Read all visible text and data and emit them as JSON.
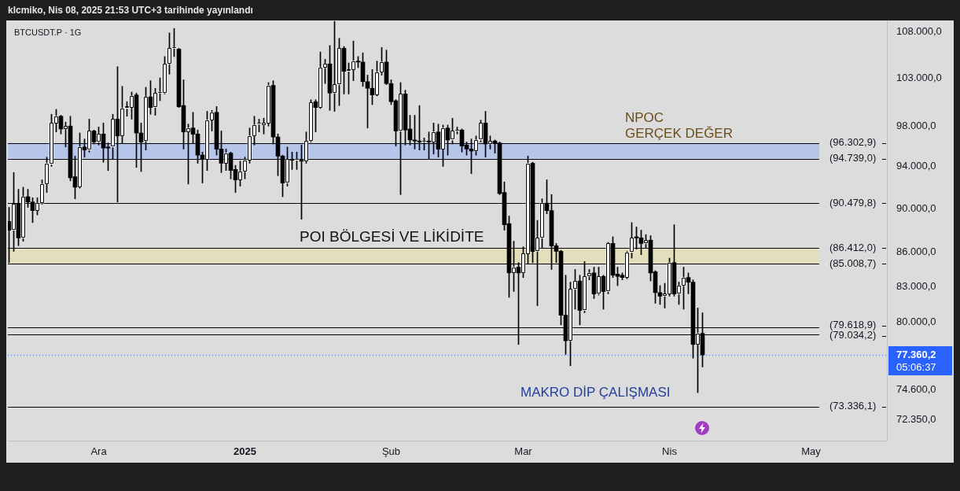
{
  "chart_data": {
    "type": "candlestick",
    "title": "BTCUSDT.P · 1G",
    "x": [
      "2024-11-12",
      "2024-11-13",
      "2024-11-14",
      "2024-11-15",
      "2024-11-16",
      "2024-11-17",
      "2024-11-18",
      "2024-11-19",
      "2024-11-20",
      "2024-11-21",
      "2024-11-22",
      "2024-11-23",
      "2024-11-24",
      "2024-11-25",
      "2024-11-26",
      "2024-11-27",
      "2024-11-28",
      "2024-11-29",
      "2024-11-30",
      "2024-12-01",
      "2024-12-02",
      "2024-12-03",
      "2024-12-04",
      "2024-12-05",
      "2024-12-06",
      "2024-12-07",
      "2024-12-08",
      "2024-12-09",
      "2024-12-10",
      "2024-12-11",
      "2024-12-12",
      "2024-12-13",
      "2024-12-14",
      "2024-12-15",
      "2024-12-16",
      "2024-12-17",
      "2024-12-18",
      "2024-12-19",
      "2024-12-20",
      "2024-12-21",
      "2024-12-22",
      "2024-12-23",
      "2024-12-24",
      "2024-12-25",
      "2024-12-26",
      "2024-12-27",
      "2024-12-28",
      "2024-12-29",
      "2024-12-30",
      "2024-12-31",
      "2025-01-01",
      "2025-01-02",
      "2025-01-03",
      "2025-01-04",
      "2025-01-05",
      "2025-01-06",
      "2025-01-07",
      "2025-01-08",
      "2025-01-09",
      "2025-01-10",
      "2025-01-11",
      "2025-01-12",
      "2025-01-13",
      "2025-01-14",
      "2025-01-15",
      "2025-01-16",
      "2025-01-17",
      "2025-01-18",
      "2025-01-19",
      "2025-01-20",
      "2025-01-21",
      "2025-01-22",
      "2025-01-23",
      "2025-01-24",
      "2025-01-25",
      "2025-01-26",
      "2025-01-27",
      "2025-01-28",
      "2025-01-29",
      "2025-01-30",
      "2025-01-31",
      "2025-02-01",
      "2025-02-02",
      "2025-02-03",
      "2025-02-04",
      "2025-02-05",
      "2025-02-06",
      "2025-02-07",
      "2025-02-08",
      "2025-02-09",
      "2025-02-10",
      "2025-02-11",
      "2025-02-12",
      "2025-02-13",
      "2025-02-14",
      "2025-02-15",
      "2025-02-16",
      "2025-02-17",
      "2025-02-18",
      "2025-02-19",
      "2025-02-20",
      "2025-02-21",
      "2025-02-22",
      "2025-02-23",
      "2025-02-24",
      "2025-02-25",
      "2025-02-26",
      "2025-02-27",
      "2025-02-28",
      "2025-03-01",
      "2025-03-02",
      "2025-03-03",
      "2025-03-04",
      "2025-03-05",
      "2025-03-06",
      "2025-03-07",
      "2025-03-08",
      "2025-03-09",
      "2025-03-10",
      "2025-03-11",
      "2025-03-12",
      "2025-03-13",
      "2025-03-14",
      "2025-03-15",
      "2025-03-16",
      "2025-03-17",
      "2025-03-18",
      "2025-03-19",
      "2025-03-20",
      "2025-03-21",
      "2025-03-22",
      "2025-03-23",
      "2025-03-24",
      "2025-03-25",
      "2025-03-26",
      "2025-03-27",
      "2025-03-28",
      "2025-03-29",
      "2025-03-30",
      "2025-03-31",
      "2025-04-01",
      "2025-04-02",
      "2025-04-03",
      "2025-04-04",
      "2025-04-05",
      "2025-04-06",
      "2025-04-07",
      "2025-04-08"
    ],
    "ohlc": [
      [
        88800,
        90100,
        85100,
        88000
      ],
      [
        88000,
        93400,
        86100,
        90400
      ],
      [
        90400,
        91800,
        86600,
        87300
      ],
      [
        87300,
        92000,
        87000,
        91100
      ],
      [
        91100,
        91800,
        90100,
        90600
      ],
      [
        90600,
        91000,
        88700,
        89800
      ],
      [
        89800,
        91000,
        89400,
        90500
      ],
      [
        90500,
        92700,
        90400,
        92300
      ],
      [
        92300,
        94900,
        91500,
        94300
      ],
      [
        94200,
        99200,
        94000,
        98300
      ],
      [
        98300,
        99700,
        97400,
        99000
      ],
      [
        99000,
        99100,
        97200,
        97700
      ],
      [
        97700,
        98400,
        95900,
        98000
      ],
      [
        98000,
        99000,
        92600,
        92900
      ],
      [
        93000,
        95000,
        90900,
        92000
      ],
      [
        92000,
        97300,
        91900,
        95900
      ],
      [
        95900,
        96700,
        94900,
        95600
      ],
      [
        95600,
        98700,
        95400,
        97500
      ],
      [
        97500,
        97600,
        96200,
        96400
      ],
      [
        96400,
        97900,
        96100,
        97200
      ],
      [
        97200,
        98300,
        94400,
        95800
      ],
      [
        95900,
        96300,
        93600,
        95800
      ],
      [
        95900,
        99200,
        94700,
        98700
      ],
      [
        98700,
        104200,
        90600,
        97000
      ],
      [
        97000,
        102100,
        96300,
        99800
      ],
      [
        99800,
        100500,
        99000,
        100000
      ],
      [
        99900,
        101500,
        98700,
        101100
      ],
      [
        101200,
        101400,
        93900,
        97300
      ],
      [
        97300,
        98300,
        93500,
        96400
      ],
      [
        96500,
        102000,
        95600,
        101000
      ],
      [
        101000,
        102700,
        99200,
        99900
      ],
      [
        99900,
        101900,
        99100,
        101400
      ],
      [
        101400,
        103000,
        100600,
        101500
      ],
      [
        101400,
        105300,
        101300,
        104500
      ],
      [
        104500,
        107900,
        103400,
        106200
      ],
      [
        106200,
        108400,
        105300,
        106300
      ],
      [
        106100,
        106200,
        99900,
        100000
      ],
      [
        100100,
        102800,
        95700,
        97400
      ],
      [
        97400,
        98200,
        92300,
        97800
      ],
      [
        97800,
        99400,
        96300,
        97200
      ],
      [
        97200,
        97600,
        94300,
        95100
      ],
      [
        95100,
        95400,
        92400,
        94700
      ],
      [
        94700,
        99500,
        93600,
        98600
      ],
      [
        98600,
        99600,
        97500,
        99400
      ],
      [
        99400,
        100000,
        95100,
        95700
      ],
      [
        95700,
        97500,
        93400,
        94300
      ],
      [
        94300,
        95700,
        93600,
        95300
      ],
      [
        95300,
        95400,
        92800,
        93600
      ],
      [
        93700,
        94100,
        91500,
        92700
      ],
      [
        92700,
        94500,
        92100,
        93500
      ],
      [
        93500,
        94900,
        92800,
        94600
      ],
      [
        94600,
        97800,
        94300,
        97000
      ],
      [
        97000,
        99000,
        96100,
        98100
      ],
      [
        98200,
        98700,
        97400,
        98300
      ],
      [
        98100,
        98800,
        97200,
        98300
      ],
      [
        98300,
        102500,
        98000,
        102200
      ],
      [
        102200,
        102700,
        96200,
        96900
      ],
      [
        96900,
        97200,
        93100,
        95000
      ],
      [
        95000,
        95100,
        91100,
        92400
      ],
      [
        92400,
        95900,
        92100,
        94700
      ],
      [
        94700,
        95400,
        93700,
        94600
      ],
      [
        94600,
        95400,
        93700,
        94700
      ],
      [
        94600,
        96100,
        89000,
        94500
      ],
      [
        94500,
        97400,
        94300,
        96500
      ],
      [
        96500,
        100700,
        96400,
        100400
      ],
      [
        100500,
        100700,
        97400,
        99900
      ],
      [
        99900,
        105800,
        99800,
        104100
      ],
      [
        104100,
        105000,
        102400,
        104500
      ],
      [
        104500,
        106500,
        99600,
        101400
      ],
      [
        101400,
        109200,
        99500,
        102300
      ],
      [
        102300,
        107300,
        100100,
        106200
      ],
      [
        106200,
        106400,
        101300,
        103700
      ],
      [
        103700,
        104600,
        101300,
        103900
      ],
      [
        103900,
        107000,
        102700,
        104800
      ],
      [
        104800,
        105300,
        104100,
        104700
      ],
      [
        104700,
        105700,
        102100,
        102600
      ],
      [
        102600,
        103300,
        97800,
        101900
      ],
      [
        101900,
        103900,
        100200,
        101200
      ],
      [
        101200,
        104800,
        101100,
        103600
      ],
      [
        103600,
        106300,
        103300,
        104700
      ],
      [
        104700,
        106000,
        102300,
        102400
      ],
      [
        102400,
        102800,
        100200,
        100500
      ],
      [
        100600,
        100700,
        96000,
        97500
      ],
      [
        97500,
        102500,
        91300,
        101300
      ],
      [
        101300,
        101700,
        96100,
        97600
      ],
      [
        97700,
        99100,
        96100,
        96600
      ],
      [
        96600,
        99100,
        95700,
        96500
      ],
      [
        96500,
        100100,
        95600,
        96400
      ],
      [
        96400,
        96800,
        95600,
        96500
      ],
      [
        96500,
        97400,
        94700,
        96400
      ],
      [
        96400,
        98300,
        95200,
        97400
      ],
      [
        97400,
        98200,
        94900,
        95700
      ],
      [
        95700,
        98100,
        94000,
        97800
      ],
      [
        97800,
        98100,
        95100,
        96600
      ],
      [
        96600,
        98800,
        96200,
        97500
      ],
      [
        97500,
        97900,
        97200,
        97600
      ],
      [
        97600,
        97700,
        95400,
        96000
      ],
      [
        96100,
        96400,
        95100,
        95700
      ],
      [
        95700,
        96700,
        93300,
        95500
      ],
      [
        95500,
        97000,
        95100,
        96600
      ],
      [
        96600,
        98600,
        96400,
        98300
      ],
      [
        98300,
        99500,
        94900,
        96200
      ],
      [
        96200,
        97000,
        95700,
        96500
      ],
      [
        96500,
        96600,
        95300,
        96300
      ],
      [
        96300,
        96400,
        91300,
        91400
      ],
      [
        91500,
        92500,
        88000,
        88500
      ],
      [
        88600,
        89300,
        82100,
        84200
      ],
      [
        84200,
        87000,
        82600,
        84700
      ],
      [
        84700,
        85100,
        78200,
        84200
      ],
      [
        84200,
        86500,
        83800,
        85900
      ],
      [
        85900,
        95000,
        85000,
        94300
      ],
      [
        94300,
        94400,
        85100,
        86100
      ],
      [
        86100,
        88900,
        81400,
        87300
      ],
      [
        87300,
        90900,
        86400,
        90500
      ],
      [
        90500,
        92700,
        89500,
        89800
      ],
      [
        89800,
        91300,
        84500,
        86600
      ],
      [
        86600,
        86800,
        85100,
        86100
      ],
      [
        86100,
        86200,
        79800,
        80600
      ],
      [
        80600,
        84000,
        77400,
        78500
      ],
      [
        78500,
        83400,
        76500,
        82800
      ],
      [
        82800,
        84500,
        81100,
        83500
      ],
      [
        83500,
        84000,
        79800,
        81000
      ],
      [
        81000,
        85200,
        80800,
        83900
      ],
      [
        83900,
        84500,
        83600,
        84200
      ],
      [
        84200,
        84700,
        82000,
        82400
      ],
      [
        82400,
        84700,
        82300,
        83900
      ],
      [
        83900,
        84000,
        81100,
        82600
      ],
      [
        82600,
        86900,
        82400,
        86800
      ],
      [
        86800,
        87400,
        83800,
        84000
      ],
      [
        84100,
        84700,
        83100,
        83900
      ],
      [
        84000,
        84200,
        83600,
        83800
      ],
      [
        83800,
        86100,
        83700,
        86000
      ],
      [
        86000,
        88700,
        85500,
        87300
      ],
      [
        87400,
        88300,
        86300,
        87300
      ],
      [
        87300,
        88000,
        85800,
        86800
      ],
      [
        86800,
        87600,
        86400,
        87100
      ],
      [
        87100,
        87500,
        83500,
        84200
      ],
      [
        84300,
        84400,
        81600,
        82500
      ],
      [
        82500,
        83100,
        81500,
        82200
      ],
      [
        82200,
        83300,
        81200,
        82400
      ],
      [
        82400,
        85500,
        82200,
        85100
      ],
      [
        85100,
        88500,
        82200,
        82400
      ],
      [
        82400,
        83400,
        81500,
        83100
      ],
      [
        83100,
        84700,
        81100,
        83800
      ],
      [
        83800,
        84200,
        82400,
        83400
      ],
      [
        83400,
        83600,
        77100,
        78200
      ],
      [
        78200,
        81200,
        74400,
        79100
      ],
      [
        79100,
        80800,
        76400,
        77360.2
      ]
    ],
    "colors": [
      "#000000",
      "#ffffff",
      "#000000",
      "#ffffff",
      "#000000",
      "#000000",
      "#ffffff",
      "#ffffff",
      "#ffffff",
      "#ffffff",
      "#ffffff",
      "#000000",
      "#ffffff",
      "#000000",
      "#000000",
      "#ffffff",
      "#000000",
      "#ffffff",
      "#000000",
      "#ffffff",
      "#000000",
      "#000000",
      "#ffffff",
      "#000000",
      "#ffffff",
      "#ffffff",
      "#ffffff",
      "#000000",
      "#000000",
      "#ffffff",
      "#000000",
      "#ffffff",
      "#ffffff",
      "#ffffff",
      "#ffffff",
      "#ffffff",
      "#000000",
      "#000000",
      "#ffffff",
      "#000000",
      "#000000",
      "#000000",
      "#ffffff",
      "#ffffff",
      "#000000",
      "#000000",
      "#ffffff",
      "#000000",
      "#000000",
      "#ffffff",
      "#ffffff",
      "#ffffff",
      "#ffffff",
      "#ffffff",
      "#ffffff",
      "#ffffff",
      "#000000",
      "#000000",
      "#000000",
      "#ffffff",
      "#000000",
      "#ffffff",
      "#000000",
      "#ffffff",
      "#ffffff",
      "#000000",
      "#ffffff",
      "#ffffff",
      "#000000",
      "#ffffff",
      "#ffffff",
      "#000000",
      "#ffffff",
      "#ffffff",
      "#000000",
      "#000000",
      "#000000",
      "#000000",
      "#ffffff",
      "#ffffff",
      "#000000",
      "#000000",
      "#000000",
      "#ffffff",
      "#000000",
      "#000000",
      "#000000",
      "#000000",
      "#ffffff",
      "#000000",
      "#ffffff",
      "#000000",
      "#ffffff",
      "#000000",
      "#ffffff",
      "#ffffff",
      "#000000",
      "#000000",
      "#000000",
      "#ffffff",
      "#ffffff",
      "#000000",
      "#ffffff",
      "#000000",
      "#000000",
      "#000000",
      "#000000",
      "#ffffff",
      "#000000",
      "#ffffff",
      "#ffffff",
      "#000000",
      "#ffffff",
      "#ffffff",
      "#000000",
      "#000000",
      "#000000",
      "#000000",
      "#000000",
      "#ffffff",
      "#ffffff",
      "#000000",
      "#ffffff",
      "#ffffff",
      "#000000",
      "#ffffff",
      "#000000",
      "#ffffff",
      "#000000",
      "#000000",
      "#000000",
      "#ffffff",
      "#ffffff",
      "#000000",
      "#000000",
      "#ffffff",
      "#000000",
      "#000000",
      "#000000",
      "#ffffff",
      "#ffffff",
      "#000000",
      "#ffffff",
      "#ffffff",
      "#000000",
      "#000000",
      "#ffffff",
      "#000000"
    ],
    "xlim": [
      "2024-11-11T18:00",
      "2025-05-17T02:00"
    ],
    "xticks": [
      {
        "value": "2024-12-01",
        "label": "Ara"
      },
      {
        "value": "2025-01-01",
        "label": "2025"
      },
      {
        "value": "2025-02-01",
        "label": "Şub"
      },
      {
        "value": "2025-03-01",
        "label": "Mar"
      },
      {
        "value": "2025-04-01",
        "label": "Nis"
      },
      {
        "value": "2025-05-01",
        "label": "May"
      }
    ],
    "ylim": [
      70800,
      109300
    ],
    "log": true,
    "yticks": [
      {
        "value": 108000,
        "label": "108.000,0"
      },
      {
        "value": 103000,
        "label": "103.000,0"
      },
      {
        "value": 98000,
        "label": "98.000,0"
      },
      {
        "value": 94000,
        "label": "94.000,0"
      },
      {
        "value": 90000,
        "label": "90.000,0"
      },
      {
        "value": 86000,
        "label": "86.000,0"
      },
      {
        "value": 83000,
        "label": "83.000,0"
      },
      {
        "value": 80000,
        "label": "80.000,0"
      },
      {
        "value": 74600,
        "label": "74.600,0"
      },
      {
        "value": 72350,
        "label": "72.350,0"
      }
    ],
    "bands": [
      {
        "axis": "y",
        "from": 94739,
        "to": 96302.9,
        "color": "#b6c6eb"
      },
      {
        "axis": "y",
        "from": 85008.7,
        "to": 86412,
        "color": "#e3dfbc"
      }
    ],
    "ref_lines": [
      {
        "axis": "y",
        "value": 96302.9,
        "label": "(96.302,9)",
        "color": "#000000"
      },
      {
        "axis": "y",
        "value": 94739,
        "label": "(94.739,0)",
        "color": "#000000"
      },
      {
        "axis": "y",
        "value": 90479.8,
        "label": "(90.479,8)",
        "color": "#000000"
      },
      {
        "axis": "y",
        "value": 86412,
        "label": "(86.412,0)",
        "color": "#000000"
      },
      {
        "axis": "y",
        "value": 85008.7,
        "label": "(85.008,7)",
        "color": "#000000"
      },
      {
        "axis": "y",
        "value": 79618.9,
        "label": "(79.618,9)",
        "color": "#000000"
      },
      {
        "axis": "y",
        "value": 79034.2,
        "label": "(79.034,2)",
        "color": "#000000"
      },
      {
        "axis": "y",
        "value": 73336.1,
        "label": "(73.336,1)",
        "color": "#000000"
      },
      {
        "axis": "y",
        "value": 77360.2,
        "label": "77.360,2",
        "color": "#2962ff",
        "line_style": "dotted"
      }
    ],
    "annotations": [
      "klcmiko, Nis 08, 2025 21:53 UTC+3 tarihinde yayınlandı",
      "NPOC",
      "GERÇEK DEĞER",
      "POI BÖLGESİ VE LİKİDİTE",
      "MAKRO DİP ÇALIŞMASI",
      "05:06:37"
    ]
  }
}
